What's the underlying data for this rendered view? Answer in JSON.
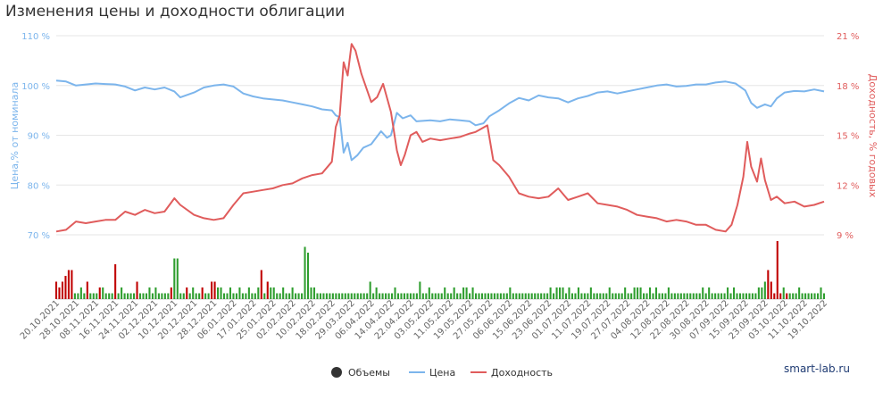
{
  "title": "Изменения цены и доходности облигации",
  "watermark": "smart-lab.ru",
  "colors": {
    "price": "#7cb5ec",
    "yield": "#e05c5c",
    "volume_up": "#2f9e2f",
    "volume_down": "#c00000",
    "grid": "#e6e6e6",
    "axis_text": "#666666",
    "legend_volumes": "#333333"
  },
  "chart_data": {
    "type": "line",
    "title": "Изменения цены и доходности облигации",
    "y_left": {
      "label": "Цена,% от номинала",
      "min": 70,
      "max": 110,
      "ticks": [
        70,
        80,
        90,
        100,
        110
      ],
      "unit": " %"
    },
    "y_right": {
      "label": "Доходность, % годовых",
      "min": 9,
      "max": 21,
      "ticks": [
        9,
        12,
        15,
        18,
        21
      ],
      "unit": " %"
    },
    "x_ticks": [
      "20.10.2021",
      "28.10.2021",
      "08.11.2021",
      "16.11.2021",
      "24.11.2021",
      "02.12.2021",
      "10.12.2021",
      "20.12.2021",
      "28.12.2021",
      "06.01.2022",
      "17.01.2022",
      "25.01.2022",
      "02.02.2022",
      "10.02.2022",
      "18.02.2022",
      "29.03.2022",
      "06.04.2022",
      "14.04.2022",
      "22.04.2022",
      "03.05.2022",
      "11.05.2022",
      "19.05.2022",
      "27.05.2022",
      "06.06.2022",
      "15.06.2022",
      "23.06.2022",
      "01.07.2022",
      "11.07.2022",
      "19.07.2022",
      "27.07.2022",
      "04.08.2022",
      "12.08.2022",
      "22.08.2022",
      "30.08.2022",
      "07.09.2022",
      "15.09.2022",
      "23.09.2022",
      "03.10.2022",
      "11.10.2022",
      "19.10.2022"
    ],
    "legend": [
      "Объемы",
      "Цена",
      "Доходность"
    ],
    "grid": true,
    "legend_position": "bottom-center",
    "series": [
      {
        "name": "Цена",
        "axis": "left",
        "points": [
          [
            0,
            101
          ],
          [
            0.5,
            100.8
          ],
          [
            1,
            100
          ],
          [
            1.5,
            100.2
          ],
          [
            2,
            100.4
          ],
          [
            2.5,
            100.3
          ],
          [
            3,
            100.2
          ],
          [
            3.5,
            99.8
          ],
          [
            4,
            99
          ],
          [
            4.5,
            99.6
          ],
          [
            5,
            99.2
          ],
          [
            5.5,
            99.6
          ],
          [
            6,
            98.8
          ],
          [
            6.3,
            97.6
          ],
          [
            7,
            98.6
          ],
          [
            7.5,
            99.6
          ],
          [
            8,
            100
          ],
          [
            8.5,
            100.2
          ],
          [
            9,
            99.8
          ],
          [
            9.5,
            98.4
          ],
          [
            10,
            97.8
          ],
          [
            10.5,
            97.4
          ],
          [
            11,
            97.2
          ],
          [
            11.5,
            97
          ],
          [
            12,
            96.6
          ],
          [
            12.5,
            96.2
          ],
          [
            13,
            95.8
          ],
          [
            13.5,
            95.2
          ],
          [
            14,
            95
          ],
          [
            14.2,
            94
          ],
          [
            14.4,
            93.6
          ],
          [
            14.6,
            86.5
          ],
          [
            14.8,
            88.5
          ],
          [
            15,
            85
          ],
          [
            15.3,
            86
          ],
          [
            15.6,
            87.5
          ],
          [
            16,
            88.2
          ],
          [
            16.5,
            90.8
          ],
          [
            16.8,
            89.5
          ],
          [
            17,
            90
          ],
          [
            17.3,
            94.5
          ],
          [
            17.6,
            93.4
          ],
          [
            18,
            94
          ],
          [
            18.3,
            92.8
          ],
          [
            19,
            93
          ],
          [
            19.5,
            92.8
          ],
          [
            20,
            93.2
          ],
          [
            20.5,
            93
          ],
          [
            21,
            92.8
          ],
          [
            21.3,
            92
          ],
          [
            21.7,
            92.4
          ],
          [
            22,
            93.8
          ],
          [
            22.5,
            95
          ],
          [
            23,
            96.4
          ],
          [
            23.5,
            97.5
          ],
          [
            24,
            97
          ],
          [
            24.5,
            98
          ],
          [
            25,
            97.6
          ],
          [
            25.5,
            97.4
          ],
          [
            26,
            96.6
          ],
          [
            26.5,
            97.4
          ],
          [
            27,
            97.9
          ],
          [
            27.5,
            98.6
          ],
          [
            28,
            98.8
          ],
          [
            28.5,
            98.4
          ],
          [
            29,
            98.8
          ],
          [
            29.5,
            99.2
          ],
          [
            30,
            99.6
          ],
          [
            30.5,
            100
          ],
          [
            31,
            100.2
          ],
          [
            31.5,
            99.8
          ],
          [
            32,
            99.9
          ],
          [
            32.5,
            100.2
          ],
          [
            33,
            100.2
          ],
          [
            33.5,
            100.6
          ],
          [
            34,
            100.8
          ],
          [
            34.5,
            100.4
          ],
          [
            35,
            99
          ],
          [
            35.3,
            96.5
          ],
          [
            35.6,
            95.5
          ],
          [
            36,
            96.2
          ],
          [
            36.3,
            95.8
          ],
          [
            36.6,
            97.4
          ],
          [
            37,
            98.6
          ],
          [
            37.5,
            98.9
          ],
          [
            38,
            98.8
          ],
          [
            38.5,
            99.2
          ],
          [
            39,
            98.8
          ]
        ]
      },
      {
        "name": "Доходность",
        "axis": "right",
        "points": [
          [
            0,
            9.2
          ],
          [
            0.5,
            9.3
          ],
          [
            1,
            9.8
          ],
          [
            1.5,
            9.7
          ],
          [
            2,
            9.8
          ],
          [
            2.5,
            9.9
          ],
          [
            3,
            9.9
          ],
          [
            3.5,
            10.4
          ],
          [
            4,
            10.2
          ],
          [
            4.5,
            10.5
          ],
          [
            5,
            10.3
          ],
          [
            5.5,
            10.4
          ],
          [
            6,
            11.2
          ],
          [
            6.3,
            10.8
          ],
          [
            7,
            10.2
          ],
          [
            7.5,
            10
          ],
          [
            8,
            9.9
          ],
          [
            8.5,
            10
          ],
          [
            9,
            10.8
          ],
          [
            9.5,
            11.5
          ],
          [
            10,
            11.6
          ],
          [
            10.5,
            11.7
          ],
          [
            11,
            11.8
          ],
          [
            11.5,
            12
          ],
          [
            12,
            12.1
          ],
          [
            12.5,
            12.4
          ],
          [
            13,
            12.6
          ],
          [
            13.5,
            12.7
          ],
          [
            14,
            13.4
          ],
          [
            14.2,
            15.5
          ],
          [
            14.4,
            16.2
          ],
          [
            14.6,
            19.4
          ],
          [
            14.8,
            18.6
          ],
          [
            15,
            20.5
          ],
          [
            15.2,
            20.1
          ],
          [
            15.5,
            18.7
          ],
          [
            16,
            17
          ],
          [
            16.3,
            17.3
          ],
          [
            16.6,
            18.1
          ],
          [
            17,
            16.4
          ],
          [
            17.3,
            14.1
          ],
          [
            17.5,
            13.2
          ],
          [
            17.7,
            13.8
          ],
          [
            18,
            15
          ],
          [
            18.3,
            15.2
          ],
          [
            18.6,
            14.6
          ],
          [
            19,
            14.8
          ],
          [
            19.5,
            14.7
          ],
          [
            20,
            14.8
          ],
          [
            20.5,
            14.9
          ],
          [
            21,
            15.1
          ],
          [
            21.3,
            15.2
          ],
          [
            21.6,
            15.4
          ],
          [
            21.9,
            15.6
          ],
          [
            22.2,
            13.5
          ],
          [
            22.5,
            13.2
          ],
          [
            23,
            12.5
          ],
          [
            23.5,
            11.5
          ],
          [
            24,
            11.3
          ],
          [
            24.5,
            11.2
          ],
          [
            25,
            11.3
          ],
          [
            25.5,
            11.8
          ],
          [
            26,
            11.1
          ],
          [
            26.5,
            11.3
          ],
          [
            27,
            11.5
          ],
          [
            27.5,
            10.9
          ],
          [
            28,
            10.8
          ],
          [
            28.5,
            10.7
          ],
          [
            29,
            10.5
          ],
          [
            29.5,
            10.2
          ],
          [
            30,
            10.1
          ],
          [
            30.5,
            10
          ],
          [
            31,
            9.8
          ],
          [
            31.5,
            9.9
          ],
          [
            32,
            9.8
          ],
          [
            32.5,
            9.6
          ],
          [
            33,
            9.6
          ],
          [
            33.5,
            9.3
          ],
          [
            34,
            9.2
          ],
          [
            34.3,
            9.6
          ],
          [
            34.6,
            10.8
          ],
          [
            34.9,
            12.5
          ],
          [
            35.1,
            14.6
          ],
          [
            35.3,
            13.1
          ],
          [
            35.6,
            12.2
          ],
          [
            35.8,
            13.6
          ],
          [
            36,
            12.3
          ],
          [
            36.3,
            11.1
          ],
          [
            36.6,
            11.3
          ],
          [
            37,
            10.9
          ],
          [
            37.5,
            11
          ],
          [
            38,
            10.7
          ],
          [
            38.5,
            10.8
          ],
          [
            39,
            11
          ]
        ]
      },
      {
        "name": "Объемы",
        "axis": "volume",
        "values": [
          3,
          2,
          3,
          4,
          5,
          5,
          1,
          1,
          2,
          1,
          3,
          1,
          1,
          1,
          2,
          2,
          1,
          1,
          1,
          6,
          1,
          2,
          1,
          1,
          1,
          1,
          3,
          1,
          1,
          1,
          2,
          1,
          2,
          1,
          1,
          1,
          1,
          2,
          7,
          7,
          1,
          1,
          2,
          1,
          2,
          1,
          1,
          2,
          1,
          1,
          3,
          3,
          2,
          2,
          1,
          1,
          2,
          1,
          1,
          2,
          1,
          1,
          2,
          1,
          1,
          2,
          5,
          1,
          3,
          2,
          2,
          1,
          1,
          2,
          1,
          1,
          2,
          1,
          1,
          1,
          9,
          8,
          2,
          2,
          1,
          1,
          1,
          1,
          1,
          1,
          1,
          1,
          1,
          1,
          1,
          1,
          1,
          1,
          1,
          1,
          1,
          3,
          1,
          2,
          1,
          1,
          1,
          1,
          1,
          2,
          1,
          1,
          1,
          1,
          1,
          1,
          1,
          3,
          1,
          1,
          2,
          1,
          1,
          1,
          1,
          2,
          1,
          1,
          2,
          1,
          1,
          2,
          2,
          1,
          2,
          1,
          1,
          1,
          1,
          1,
          1,
          1,
          1,
          1,
          1,
          1,
          2,
          1,
          1,
          1,
          1,
          1,
          1,
          1,
          1,
          1,
          1,
          1,
          1,
          2,
          1,
          2,
          2,
          2,
          1,
          2,
          1,
          1,
          2,
          1,
          1,
          1,
          2,
          1,
          1,
          1,
          1,
          1,
          2,
          1,
          1,
          1,
          1,
          2,
          1,
          1,
          2,
          2,
          2,
          1,
          1,
          2,
          1,
          2,
          1,
          1,
          1,
          2,
          1,
          1,
          1,
          1,
          1,
          1,
          1,
          1,
          1,
          1,
          2,
          1,
          2,
          1,
          1,
          1,
          1,
          1,
          2,
          1,
          2,
          1,
          1,
          1,
          1,
          1,
          1,
          1,
          2,
          2,
          3,
          5,
          3,
          1,
          10,
          1,
          2,
          1,
          1,
          1,
          1,
          2,
          1,
          1,
          1,
          1,
          1,
          1,
          2,
          1
        ],
        "up": [
          0,
          0,
          0,
          0,
          0,
          0,
          1,
          1,
          1,
          1,
          0,
          1,
          1,
          1,
          0,
          1,
          1,
          1,
          1,
          0,
          1,
          1,
          1,
          1,
          1,
          1,
          0,
          1,
          1,
          1,
          1,
          1,
          1,
          1,
          1,
          1,
          1,
          0,
          1,
          1,
          1,
          1,
          0,
          1,
          1,
          1,
          1,
          0,
          1,
          1,
          0,
          0,
          1,
          1,
          1,
          1,
          1,
          1,
          1,
          1,
          1,
          1,
          1,
          1,
          1,
          1,
          0,
          1,
          0,
          1,
          1,
          1,
          1,
          1,
          1,
          1,
          1,
          1,
          1,
          1,
          1,
          1,
          1,
          1,
          1,
          1,
          1,
          1,
          1,
          1,
          1,
          1,
          1,
          1,
          1,
          1,
          1,
          1,
          1,
          1,
          1,
          1,
          1,
          1,
          1,
          1,
          1,
          1,
          1,
          1,
          1,
          1,
          1,
          1,
          1,
          1,
          1,
          1,
          1,
          1,
          1,
          1,
          1,
          1,
          1,
          1,
          1,
          1,
          1,
          1,
          1,
          1,
          1,
          1,
          1,
          1,
          1,
          1,
          1,
          1,
          1,
          1,
          1,
          1,
          1,
          1,
          1,
          1,
          1,
          1,
          1,
          1,
          1,
          1,
          1,
          1,
          1,
          1,
          1,
          1,
          1,
          1,
          1,
          1,
          1,
          1,
          1,
          1,
          1,
          1,
          1,
          1,
          1,
          1,
          1,
          1,
          1,
          1,
          1,
          1,
          1,
          1,
          1,
          1,
          1,
          1,
          1,
          1,
          1,
          1,
          1,
          1,
          1,
          1,
          1,
          1,
          1,
          1,
          1,
          1,
          1,
          1,
          1,
          1,
          1,
          1,
          1,
          1,
          1,
          1,
          1,
          1,
          1,
          1,
          1,
          1,
          1,
          1,
          1,
          1,
          1,
          1,
          1,
          1,
          1,
          1,
          1,
          1,
          1,
          0,
          0,
          0,
          0,
          0,
          1,
          0,
          1,
          1,
          1,
          1,
          1,
          1,
          1,
          1,
          1,
          1,
          1,
          1,
          1,
          0,
          1
        ]
      }
    ]
  }
}
